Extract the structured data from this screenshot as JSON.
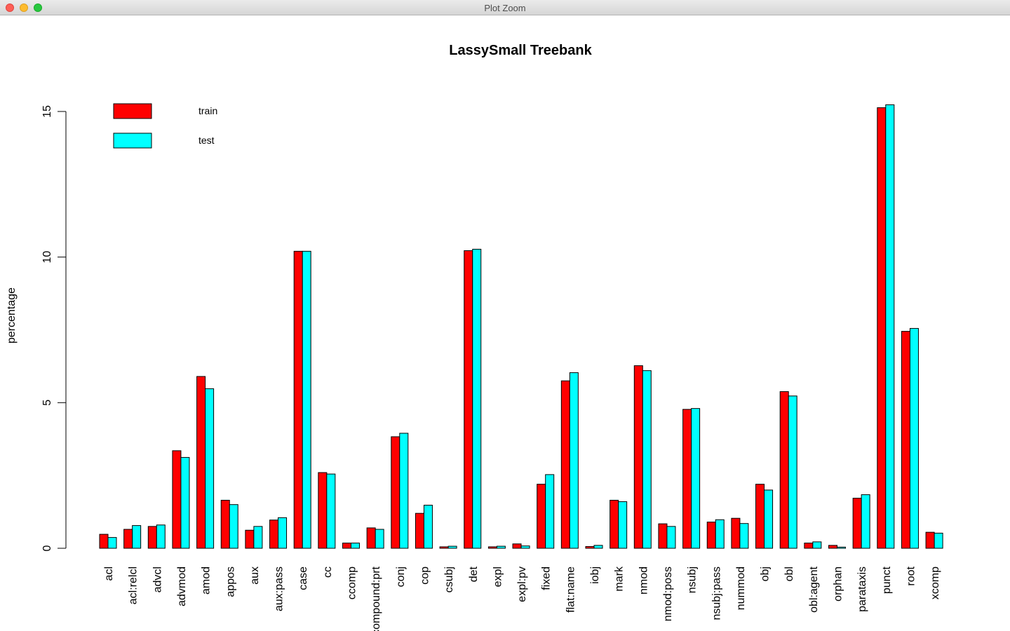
{
  "window": {
    "title": "Plot Zoom",
    "controls": {
      "close": "close-icon",
      "minimize": "minimize-icon",
      "zoom": "zoom-icon"
    }
  },
  "chart_data": {
    "type": "bar",
    "title": "LassySmall Treebank",
    "xlabel": "",
    "ylabel": "percentage",
    "ylim": [
      0,
      15
    ],
    "yticks": [
      0,
      5,
      10,
      15
    ],
    "grid": false,
    "legend": "top-left",
    "categories": [
      "acl",
      "acl:relcl",
      "advcl",
      "advmod",
      "amod",
      "appos",
      "aux",
      "aux:pass",
      "case",
      "cc",
      "ccomp",
      "compound:prt",
      "conj",
      "cop",
      "csubj",
      "det",
      "expl",
      "expl:pv",
      "fixed",
      "flat:name",
      "iobj",
      "mark",
      "nmod",
      "nmod:poss",
      "nsubj",
      "nsubj:pass",
      "nummod",
      "obj",
      "obl",
      "obl:agent",
      "orphan",
      "parataxis",
      "punct",
      "root",
      "xcomp"
    ],
    "series": [
      {
        "name": "train",
        "color": "#ff0000",
        "values": [
          0.48,
          0.65,
          0.75,
          3.35,
          5.9,
          1.65,
          0.62,
          0.97,
          10.2,
          2.6,
          0.18,
          0.7,
          3.83,
          1.2,
          0.05,
          10.22,
          0.05,
          0.15,
          2.2,
          5.75,
          0.06,
          1.65,
          6.27,
          0.84,
          4.77,
          0.9,
          1.03,
          2.2,
          5.38,
          0.18,
          0.1,
          1.72,
          15.13,
          7.45,
          0.55
        ]
      },
      {
        "name": "test",
        "color": "#00ffff",
        "values": [
          0.37,
          0.78,
          0.8,
          3.12,
          5.48,
          1.5,
          0.75,
          1.05,
          10.2,
          2.55,
          0.18,
          0.65,
          3.95,
          1.48,
          0.07,
          10.27,
          0.07,
          0.08,
          2.53,
          6.03,
          0.1,
          1.6,
          6.1,
          0.75,
          4.8,
          0.98,
          0.85,
          2.0,
          5.23,
          0.22,
          0.04,
          1.84,
          15.23,
          7.55,
          0.52
        ]
      }
    ]
  }
}
